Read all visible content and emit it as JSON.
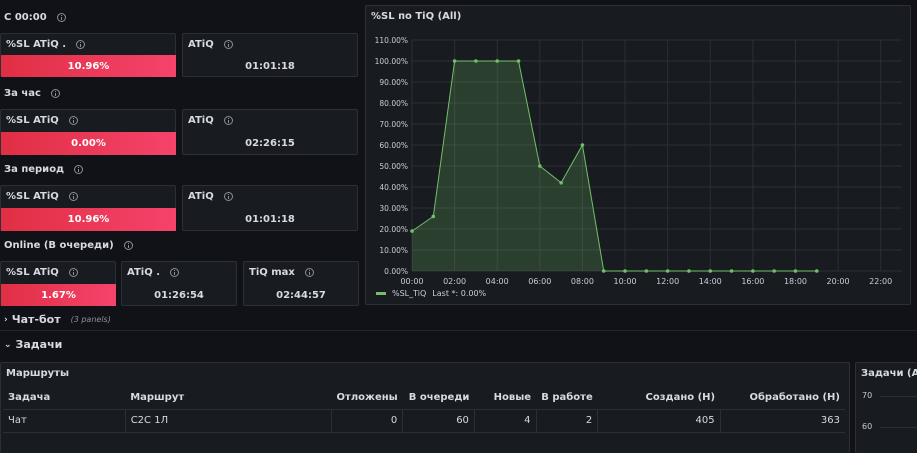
{
  "stats": {
    "rows": [
      {
        "title": "С 00:00",
        "sl_label": "%SL ATiQ .",
        "sl_value": "10.96%",
        "sl_fill": 1.0,
        "atiq_label": "ATiQ",
        "atiq_value": "01:01:18"
      },
      {
        "title": "За час",
        "sl_label": "%SL ATiQ",
        "sl_value": "0.00%",
        "sl_fill": 1.0,
        "atiq_label": "ATiQ",
        "atiq_value": "02:26:15"
      },
      {
        "title": "За период",
        "sl_label": "%SL ATiQ",
        "sl_value": "10.96%",
        "sl_fill": 1.0,
        "atiq_label": "ATiQ",
        "atiq_value": "01:01:18"
      }
    ],
    "online": {
      "title": "Online (В очереди)",
      "sl_label": "%SL ATiQ",
      "sl_value": "1.67%",
      "sl_fill": 1.0,
      "atiq_label": "ATiQ .",
      "atiq_value": "01:26:54",
      "tiq_label": "TiQ max",
      "tiq_value": "02:44:57"
    }
  },
  "chart_panel": {
    "title": "%SL по TiQ (All)",
    "legend_label": "%SL_TiQ",
    "legend_last": "Last *: 0.00%",
    "series_color": "#73bf69"
  },
  "chart_data": {
    "type": "area",
    "x": [
      "00:00",
      "01:00",
      "02:00",
      "03:00",
      "04:00",
      "05:00",
      "06:00",
      "07:00",
      "08:00",
      "09:00",
      "10:00",
      "11:00",
      "12:00",
      "13:00",
      "14:00",
      "15:00",
      "16:00",
      "17:00",
      "18:00",
      "19:00"
    ],
    "series": [
      {
        "name": "%SL_TiQ",
        "values": [
          19,
          26,
          100,
          100,
          100,
          100,
          50,
          42,
          60,
          0,
          0,
          0,
          0,
          0,
          0,
          0,
          0,
          0,
          0,
          0
        ]
      }
    ],
    "x_ticks": [
      "00:00",
      "02:00",
      "04:00",
      "06:00",
      "08:00",
      "10:00",
      "12:00",
      "14:00",
      "16:00",
      "18:00",
      "20:00",
      "22:00"
    ],
    "y_ticks": [
      "0.00%",
      "10.00%",
      "20.00%",
      "30.00%",
      "40.00%",
      "50.00%",
      "60.00%",
      "70.00%",
      "80.00%",
      "90.00%",
      "100.00%",
      "110.00%"
    ],
    "ylim": [
      0,
      110
    ],
    "xlim_hours": [
      0,
      23
    ],
    "grid": true,
    "legend": "bottom-left"
  },
  "sections": {
    "chatbot": {
      "label": "Чат-бот",
      "panels": "(3 panels)"
    },
    "tasks": {
      "label": "Задачи"
    }
  },
  "routes_panel": {
    "title": "Маршруты",
    "headers": [
      "Задача",
      "Маршрут",
      "Отложены",
      "В очереди",
      "Новые",
      "В работе",
      "Создано (Н)",
      "Обработано (Н)"
    ],
    "rows": [
      [
        "Чат",
        "C2C 1Л",
        "0",
        "60",
        "4",
        "2",
        "405",
        "363"
      ]
    ]
  },
  "tasks_all_panel": {
    "title": "Задачи (All)",
    "y_ticks": [
      "70",
      "60"
    ]
  }
}
